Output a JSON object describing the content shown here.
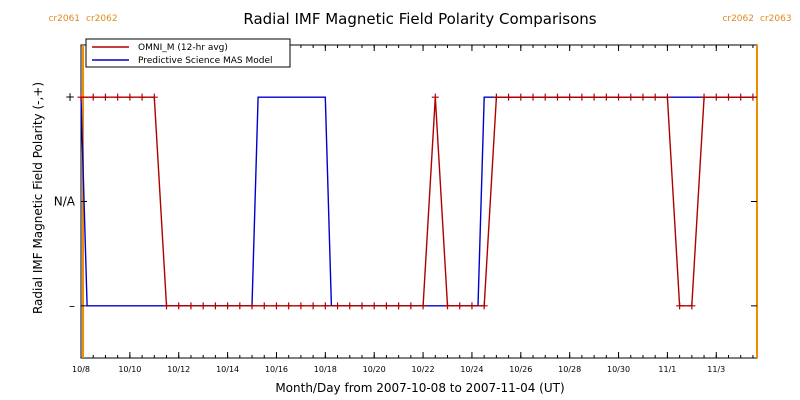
{
  "chart_data": {
    "type": "line",
    "title": "Radial IMF Magnetic Field Polarity Comparisons",
    "xlabel": "Month/Day from 2007-10-08 to 2007-11-04 (UT)",
    "ylabel": "Radial IMF Magnetic Field Polarity (-,+)",
    "xlim": [
      "2007-10-08",
      "2007-11-04"
    ],
    "ylim": [
      -1.5,
      1.5
    ],
    "y_ticks": [
      {
        "value": 1,
        "label": "+"
      },
      {
        "value": 0,
        "label": "N/A"
      },
      {
        "value": -1,
        "label": "–"
      }
    ],
    "x_ticks": [
      "10/8",
      "10/10",
      "10/12",
      "10/14",
      "10/16",
      "10/18",
      "10/20",
      "10/22",
      "10/24",
      "10/26",
      "10/28",
      "10/30",
      "11/1",
      "11/3"
    ],
    "x_tick_dates": [
      "2007-10-08",
      "2007-10-10",
      "2007-10-12",
      "2007-10-14",
      "2007-10-16",
      "2007-10-18",
      "2007-10-20",
      "2007-10-22",
      "2007-10-24",
      "2007-10-26",
      "2007-10-28",
      "2007-10-30",
      "2007-11-01",
      "2007-11-03"
    ],
    "carrington_markers": [
      {
        "date": "2007-10-08T02:00",
        "label_left": "cr2061",
        "label_right": "cr2062",
        "color": "#f08c00"
      },
      {
        "date": "2007-11-04T16:00",
        "label_left": "cr2062",
        "label_right": "cr2063",
        "color": "#f08c00"
      }
    ],
    "legend": {
      "position": "top-left"
    },
    "series": [
      {
        "name": "OMNI_M (12-hr avg)",
        "color": "#b00000",
        "marker": "plus",
        "points": [
          {
            "x": "2007-10-08T00:00",
            "y": 1
          },
          {
            "x": "2007-10-08T12:00",
            "y": 1
          },
          {
            "x": "2007-10-09T00:00",
            "y": 1
          },
          {
            "x": "2007-10-09T12:00",
            "y": 1
          },
          {
            "x": "2007-10-10T00:00",
            "y": 1
          },
          {
            "x": "2007-10-10T12:00",
            "y": 1
          },
          {
            "x": "2007-10-11T00:00",
            "y": 1
          },
          {
            "x": "2007-10-11T12:00",
            "y": -1
          },
          {
            "x": "2007-10-12T00:00",
            "y": -1
          },
          {
            "x": "2007-10-12T12:00",
            "y": -1
          },
          {
            "x": "2007-10-13T00:00",
            "y": -1
          },
          {
            "x": "2007-10-13T12:00",
            "y": -1
          },
          {
            "x": "2007-10-14T00:00",
            "y": -1
          },
          {
            "x": "2007-10-14T12:00",
            "y": -1
          },
          {
            "x": "2007-10-15T00:00",
            "y": -1
          },
          {
            "x": "2007-10-15T12:00",
            "y": -1
          },
          {
            "x": "2007-10-16T00:00",
            "y": -1
          },
          {
            "x": "2007-10-16T12:00",
            "y": -1
          },
          {
            "x": "2007-10-17T00:00",
            "y": -1
          },
          {
            "x": "2007-10-17T12:00",
            "y": -1
          },
          {
            "x": "2007-10-18T00:00",
            "y": -1
          },
          {
            "x": "2007-10-18T12:00",
            "y": -1
          },
          {
            "x": "2007-10-19T00:00",
            "y": -1
          },
          {
            "x": "2007-10-19T12:00",
            "y": -1
          },
          {
            "x": "2007-10-20T00:00",
            "y": -1
          },
          {
            "x": "2007-10-20T12:00",
            "y": -1
          },
          {
            "x": "2007-10-21T00:00",
            "y": -1
          },
          {
            "x": "2007-10-21T12:00",
            "y": -1
          },
          {
            "x": "2007-10-22T00:00",
            "y": -1
          },
          {
            "x": "2007-10-22T12:00",
            "y": 1
          },
          {
            "x": "2007-10-23T00:00",
            "y": -1
          },
          {
            "x": "2007-10-23T12:00",
            "y": -1
          },
          {
            "x": "2007-10-24T00:00",
            "y": -1
          },
          {
            "x": "2007-10-24T12:00",
            "y": -1
          },
          {
            "x": "2007-10-25T00:00",
            "y": 1
          },
          {
            "x": "2007-10-25T12:00",
            "y": 1
          },
          {
            "x": "2007-10-26T00:00",
            "y": 1
          },
          {
            "x": "2007-10-26T12:00",
            "y": 1
          },
          {
            "x": "2007-10-27T00:00",
            "y": 1
          },
          {
            "x": "2007-10-27T12:00",
            "y": 1
          },
          {
            "x": "2007-10-28T00:00",
            "y": 1
          },
          {
            "x": "2007-10-28T12:00",
            "y": 1
          },
          {
            "x": "2007-10-29T00:00",
            "y": 1
          },
          {
            "x": "2007-10-29T12:00",
            "y": 1
          },
          {
            "x": "2007-10-30T00:00",
            "y": 1
          },
          {
            "x": "2007-10-30T12:00",
            "y": 1
          },
          {
            "x": "2007-10-31T00:00",
            "y": 1
          },
          {
            "x": "2007-10-31T12:00",
            "y": 1
          },
          {
            "x": "2007-11-01T00:00",
            "y": 1
          },
          {
            "x": "2007-11-01T12:00",
            "y": -1
          },
          {
            "x": "2007-11-02T00:00",
            "y": -1
          },
          {
            "x": "2007-11-02T12:00",
            "y": 1
          },
          {
            "x": "2007-11-03T00:00",
            "y": 1
          },
          {
            "x": "2007-11-03T12:00",
            "y": 1
          },
          {
            "x": "2007-11-04T00:00",
            "y": 1
          },
          {
            "x": "2007-11-04T12:00",
            "y": 1
          }
        ]
      },
      {
        "name": "Predictive Science MAS Model",
        "color": "#0000cc",
        "marker": "none",
        "points": [
          {
            "x": "2007-10-08T00:00",
            "y": 1
          },
          {
            "x": "2007-10-08T06:00",
            "y": -1
          },
          {
            "x": "2007-10-15T00:00",
            "y": -1
          },
          {
            "x": "2007-10-15T06:00",
            "y": 1
          },
          {
            "x": "2007-10-18T00:00",
            "y": 1
          },
          {
            "x": "2007-10-18T06:00",
            "y": -1
          },
          {
            "x": "2007-10-24T06:00",
            "y": -1
          },
          {
            "x": "2007-10-24T12:00",
            "y": 1
          },
          {
            "x": "2007-11-04T12:00",
            "y": 1
          }
        ]
      }
    ]
  }
}
